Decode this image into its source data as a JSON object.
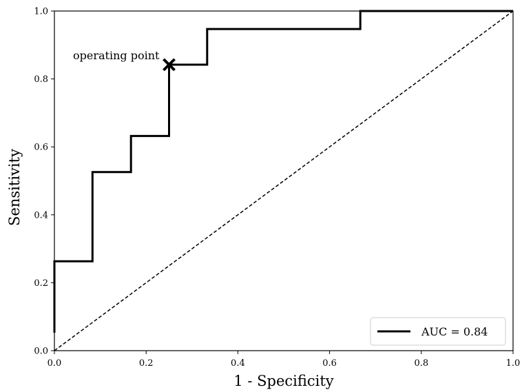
{
  "chart_data": {
    "type": "line",
    "xlabel": "1 - Specificity",
    "ylabel": "Sensitivity",
    "xlim": [
      0,
      1
    ],
    "ylim": [
      0,
      1
    ],
    "x_ticks": [
      "0.0",
      "0.2",
      "0.4",
      "0.6",
      "0.8",
      "1.0"
    ],
    "y_ticks": [
      "0.0",
      "0.2",
      "0.4",
      "0.6",
      "0.8",
      "1.0"
    ],
    "grid": false,
    "legend_position": "bottom-right",
    "series": [
      {
        "name": "AUC = 0.84",
        "style": "solid",
        "color": "#000000",
        "x": [
          0.0,
          0.0,
          0.0,
          0.083,
          0.083,
          0.167,
          0.167,
          0.25,
          0.25,
          0.333,
          0.333,
          0.667,
          0.667,
          1.0
        ],
        "y": [
          0.053,
          0.263,
          0.263,
          0.263,
          0.526,
          0.526,
          0.632,
          0.632,
          0.842,
          0.842,
          0.947,
          0.947,
          1.0,
          1.0
        ]
      }
    ],
    "reference_line": {
      "style": "dashed",
      "color": "#000000",
      "x": [
        0,
        1
      ],
      "y": [
        0,
        1
      ]
    },
    "annotations": [
      {
        "text": "operating point",
        "x": 0.25,
        "y": 0.842,
        "marker": "x"
      }
    ]
  }
}
